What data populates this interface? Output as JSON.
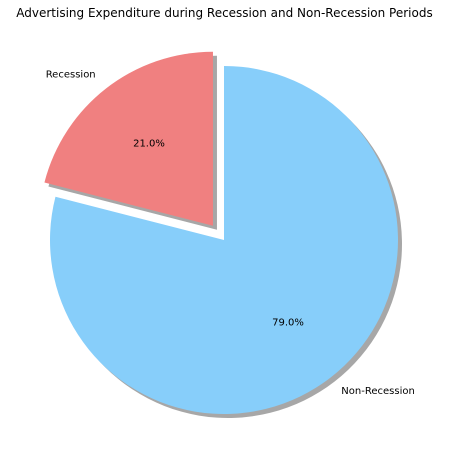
{
  "chart_data": {
    "type": "pie",
    "title": "Advertising Expenditure during Recession and Non-Recession Periods",
    "slices": [
      {
        "label": "Recession",
        "value": 21.0,
        "pct_label": "21.0%",
        "color": "#f08080",
        "exploded": true
      },
      {
        "label": "Non-Recession",
        "value": 79.0,
        "pct_label": "79.0%",
        "color": "#87cefa",
        "exploded": false
      }
    ],
    "start_angle_deg": 90,
    "direction": "counterclockwise",
    "shadow": true
  }
}
